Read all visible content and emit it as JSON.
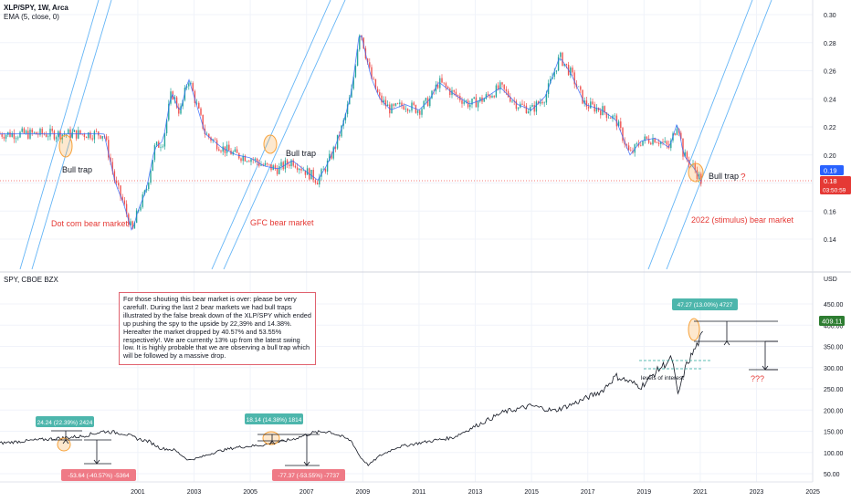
{
  "colors": {
    "up": "#26a69a",
    "down": "#ef5350",
    "ema": "#2962ff",
    "channel": "#64b5f6",
    "annotation_red": "#e53935",
    "trap_circle": "#f7a23a",
    "badge_teal": "#4db6ac",
    "badge_red": "#ef7a86",
    "spy_last": "#2e7d32",
    "xlp_last": "#2962ff",
    "xlp_prev": "#e53935"
  },
  "top_panel": {
    "legend_line1": "XLP/SPY, 1W, Arca",
    "legend_line2": "EMA (5, close, 0)",
    "last_value": "0.19",
    "prev_value": "0.18",
    "countdown": "03:50:59",
    "annotations": {
      "bull_trap_1": "Bull trap",
      "bull_trap_2": "Bull trap",
      "bull_trap_3": "Bull trap",
      "question": "?",
      "dotcom": "Dot com bear market",
      "gfc": "GFC bear market",
      "stimulus": "2022 (stimulus) bear market"
    }
  },
  "bottom_panel": {
    "legend": "SPY, CBOE BZX",
    "currency": "USD",
    "last_price": "409.11",
    "note_text": "For those shouting this bear market is over: please be very carefull!. During the last 2 bear markets we had bull traps illustrated by the false break down of the XLP/SPY which ended up pushing the spy to the upside by 22,39% and 14.38%. Hereafter the market dropped by 40.57% and 53.55% respectively!. We are currently 13% up from the latest swing low. It is highly probable that we are observing a bull trap which will be followed by a massive drop.",
    "badges": {
      "dotcom_up": "24.24 (22.39%) 2424",
      "dotcom_down": "-53.64 (-40.57%) -5364",
      "gfc_up": "18.14 (14.38%) 1814",
      "gfc_down": "-77.37 (-53.55%) -7737",
      "current_up": "47.27 (13.00%) 4727"
    },
    "levels_label": "levels of interest",
    "question_marks": "???"
  },
  "chart_data": [
    {
      "type": "line",
      "title": "XLP/SPY, 1W, Arca",
      "ylim": [
        0.12,
        0.3
      ],
      "y_ticks": [
        "0.30",
        "0.28",
        "0.26",
        "0.24",
        "0.22",
        "0.20",
        "0.18",
        "0.16",
        "0.14"
      ],
      "series": [
        {
          "name": "XLP/SPY",
          "x": [
            1999.8,
            2000.2,
            2000.5,
            2000.8,
            2001.0,
            2001.3,
            2001.6,
            2001.9,
            2002.2,
            2002.5,
            2002.8,
            2003.1,
            2003.4,
            2003.7,
            2004.0,
            2004.5,
            2005.0,
            2005.5,
            2006.0,
            2006.5,
            2007.0,
            2007.4,
            2007.7,
            2008.0,
            2008.3,
            2008.6,
            2008.9,
            2009.1,
            2009.3,
            2009.6,
            2010.0,
            2010.5,
            2011.0,
            2011.4,
            2011.7,
            2012.2,
            2012.8,
            2013.3,
            2013.9,
            2014.5,
            2015.0,
            2015.5,
            2016.0,
            2016.4,
            2016.9,
            2017.5,
            2018.0,
            2018.5,
            2018.9,
            2019.4,
            2019.9,
            2020.2,
            2020.4,
            2020.8,
            2021.2,
            2021.7,
            2021.95,
            2022.2,
            2022.45,
            2022.7
          ],
          "values": [
            0.215,
            0.18,
            0.165,
            0.145,
            0.16,
            0.175,
            0.205,
            0.21,
            0.245,
            0.23,
            0.255,
            0.235,
            0.215,
            0.21,
            0.205,
            0.2,
            0.198,
            0.192,
            0.19,
            0.196,
            0.188,
            0.182,
            0.192,
            0.205,
            0.222,
            0.245,
            0.29,
            0.272,
            0.255,
            0.24,
            0.232,
            0.236,
            0.232,
            0.24,
            0.252,
            0.244,
            0.236,
            0.24,
            0.248,
            0.236,
            0.232,
            0.242,
            0.27,
            0.258,
            0.236,
            0.232,
            0.225,
            0.2,
            0.21,
            0.212,
            0.205,
            0.224,
            0.2,
            0.19,
            0.175,
            0.162,
            0.156,
            0.175,
            0.192,
            0.188
          ]
        }
      ]
    },
    {
      "type": "line",
      "title": "SPY, CBOE BZX",
      "ylabel": "USD",
      "ylim": [
        0,
        480
      ],
      "y_ticks": [
        "450.00",
        "400.00",
        "350.00",
        "300.00",
        "250.00",
        "200.00",
        "150.00",
        "100.00",
        "50.00"
      ],
      "x_ticks": [
        "2001",
        "2003",
        "2005",
        "2007",
        "2009",
        "2011",
        "2013",
        "2015",
        "2017",
        "2019",
        "2021",
        "2023",
        "2025"
      ],
      "series": [
        {
          "name": "SPY",
          "x": [
            1996.1,
            1999.0,
            1999.8,
            2000.5,
            2001.0,
            2001.4,
            2001.8,
            2002.3,
            2002.8,
            2003.2,
            2003.8,
            2004.5,
            2005.5,
            2006.5,
            2007.2,
            2007.8,
            2008.3,
            2008.6,
            2008.9,
            2009.2,
            2009.6,
            2010.2,
            2010.8,
            2011.5,
            2012.2,
            2013.0,
            2014.0,
            2015.0,
            2015.8,
            2016.5,
            2017.5,
            2018.0,
            2018.9,
            2019.5,
            2020.0,
            2020.2,
            2020.5,
            2020.9,
            2021.3,
            2021.7,
            2022.0,
            2022.3,
            2022.5,
            2022.6
          ],
          "values": [
            122,
            138,
            150,
            145,
            132,
            126,
            110,
            106,
            82,
            88,
            102,
            112,
            118,
            131,
            146,
            150,
            136,
            127,
            90,
            70,
            92,
            112,
            120,
            128,
            135,
            162,
            195,
            210,
            198,
            215,
            245,
            280,
            255,
            295,
            322,
            235,
            305,
            355,
            405,
            445,
            468,
            415,
            365,
            405
          ]
        }
      ]
    }
  ]
}
